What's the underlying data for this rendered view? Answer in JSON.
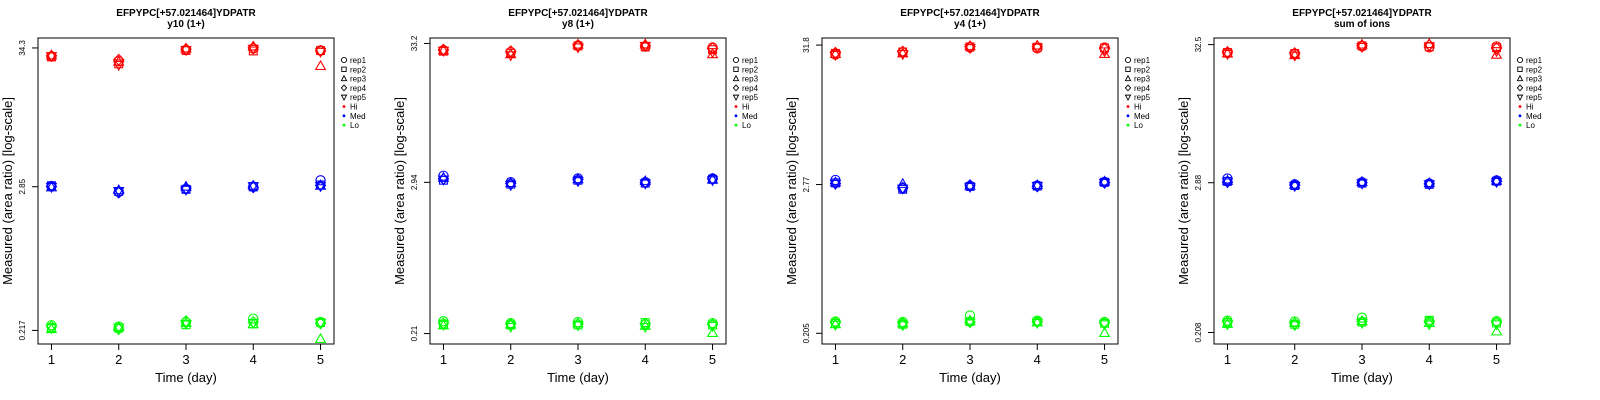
{
  "chart_data": [
    {
      "type": "scatter",
      "title": "EFPYPC[+57.021464]YDPATR",
      "subtitle": "y10 (1+)",
      "xlabel": "Time (day)",
      "ylabel": "Measured (area ratio) [log-scale]",
      "y_scale": "log",
      "x_ticks": [
        "1",
        "2",
        "3",
        "4",
        "5"
      ],
      "y_ticks": [
        {
          "value": 0.217,
          "label": "0.217"
        },
        {
          "value": 2.85,
          "label": "2.85"
        },
        {
          "value": 34.3,
          "label": "34.3"
        }
      ],
      "xlim": [
        0.8,
        5.2
      ],
      "ylim": [
        0.17,
        41
      ],
      "legend_position": "outside-right",
      "legend": [
        {
          "label": "rep1",
          "marker": "circle"
        },
        {
          "label": "rep2",
          "marker": "square"
        },
        {
          "label": "rep3",
          "marker": "triangle-up"
        },
        {
          "label": "rep4",
          "marker": "diamond"
        },
        {
          "label": "rep5",
          "marker": "triangle-down"
        },
        {
          "label": "Hi",
          "marker": "dot",
          "color": "#ff0000"
        },
        {
          "label": "Med",
          "marker": "dot",
          "color": "#0000ff"
        },
        {
          "label": "Lo",
          "marker": "dot",
          "color": "#00ff00"
        }
      ],
      "series": [
        {
          "level": "Hi",
          "color": "#ff0000",
          "marker_by_rep": true,
          "values": [
            [
              29.5,
              29.2,
              30.0,
              29.8,
              29.6
            ],
            [
              27.0,
              25.8,
              26.8,
              27.8,
              25.3
            ],
            [
              33.2,
              32.8,
              34.0,
              33.6,
              33.0
            ],
            [
              34.0,
              32.5,
              35.2,
              34.5,
              33.8
            ],
            [
              32.8,
              32.7,
              24.8,
              32.5,
              32.0
            ]
          ]
        },
        {
          "level": "Med",
          "color": "#0000ff",
          "marker_by_rep": true,
          "values": [
            [
              2.88,
              2.9,
              2.82,
              2.86,
              2.84
            ],
            [
              2.6,
              2.62,
              2.68,
              2.56,
              2.64
            ],
            [
              2.74,
              2.72,
              2.85,
              2.78,
              2.7
            ],
            [
              2.86,
              2.84,
              2.9,
              2.82,
              2.88
            ],
            [
              3.2,
              2.94,
              2.9,
              2.92,
              2.88
            ]
          ]
        },
        {
          "level": "Lo",
          "color": "#00ff00",
          "marker_by_rep": true,
          "values": [
            [
              0.238,
              0.228,
              0.222,
              0.232,
              0.226
            ],
            [
              0.232,
              0.226,
              0.23,
              0.222,
              0.228
            ],
            [
              0.252,
              0.24,
              0.248,
              0.256,
              0.244
            ],
            [
              0.268,
              0.244,
              0.242,
              0.252,
              0.248
            ],
            [
              0.252,
              0.25,
              0.186,
              0.246,
              0.248
            ]
          ]
        }
      ]
    },
    {
      "type": "scatter",
      "title": "EFPYPC[+57.021464]YDPATR",
      "subtitle": "y8 (1+)",
      "xlabel": "Time (day)",
      "ylabel": "Measured (area ratio) [log-scale]",
      "y_scale": "log",
      "x_ticks": [
        "1",
        "2",
        "3",
        "4",
        "5"
      ],
      "y_ticks": [
        {
          "value": 0.21,
          "label": "0.21"
        },
        {
          "value": 2.94,
          "label": "2.94"
        },
        {
          "value": 33.2,
          "label": "33.2"
        }
      ],
      "xlim": [
        0.8,
        5.2
      ],
      "ylim": [
        0.175,
        36.5
      ],
      "legend_position": "outside-right",
      "legend": [
        {
          "label": "rep1",
          "marker": "circle"
        },
        {
          "label": "rep2",
          "marker": "square"
        },
        {
          "label": "rep3",
          "marker": "triangle-up"
        },
        {
          "label": "rep4",
          "marker": "diamond"
        },
        {
          "label": "rep5",
          "marker": "triangle-down"
        },
        {
          "label": "Hi",
          "marker": "dot",
          "color": "#ff0000"
        },
        {
          "label": "Med",
          "marker": "dot",
          "color": "#0000ff"
        },
        {
          "label": "Lo",
          "marker": "dot",
          "color": "#00ff00"
        }
      ],
      "series": [
        {
          "level": "Hi",
          "color": "#ff0000",
          "marker_by_rep": true,
          "values": [
            [
              29.5,
              29.0,
              29.3,
              29.8,
              29.2
            ],
            [
              28.5,
              28.0,
              27.5,
              29.0,
              27.0
            ],
            [
              32.0,
              31.8,
              32.5,
              32.2,
              31.0
            ],
            [
              31.5,
              31.2,
              32.6,
              32.0,
              31.8
            ],
            [
              31.0,
              29.8,
              27.5,
              30.5,
              28.5
            ]
          ]
        },
        {
          "level": "Med",
          "color": "#0000ff",
          "marker_by_rep": true,
          "values": [
            [
              3.3,
              3.05,
              3.18,
              3.12,
              3.08
            ],
            [
              2.95,
              2.85,
              2.9,
              2.88,
              2.8
            ],
            [
              3.15,
              3.05,
              3.1,
              3.08,
              3.0
            ],
            [
              2.95,
              2.9,
              3.0,
              2.92,
              2.88
            ],
            [
              3.15,
              3.1,
              3.08,
              3.12,
              3.05
            ]
          ]
        },
        {
          "level": "Lo",
          "color": "#00ff00",
          "marker_by_rep": true,
          "values": [
            [
              0.26,
              0.248,
              0.242,
              0.25,
              0.244
            ],
            [
              0.252,
              0.244,
              0.246,
              0.248,
              0.236
            ],
            [
              0.256,
              0.244,
              0.25,
              0.248,
              0.242
            ],
            [
              0.246,
              0.254,
              0.24,
              0.25,
              0.236
            ],
            [
              0.252,
              0.244,
              0.212,
              0.246,
              0.24
            ]
          ]
        }
      ]
    },
    {
      "type": "scatter",
      "title": "EFPYPC[+57.021464]YDPATR",
      "subtitle": "y4 (1+)",
      "xlabel": "Time (day)",
      "ylabel": "Measured (area ratio) [log-scale]",
      "y_scale": "log",
      "x_ticks": [
        "1",
        "2",
        "3",
        "4",
        "5"
      ],
      "y_ticks": [
        {
          "value": 0.205,
          "label": "0.205"
        },
        {
          "value": 2.77,
          "label": "2.77"
        },
        {
          "value": 31.8,
          "label": "31.8"
        }
      ],
      "xlim": [
        0.8,
        5.2
      ],
      "ylim": [
        0.17,
        36
      ],
      "legend_position": "outside-right",
      "legend": [
        {
          "label": "rep1",
          "marker": "circle"
        },
        {
          "label": "rep2",
          "marker": "square"
        },
        {
          "label": "rep3",
          "marker": "triangle-up"
        },
        {
          "label": "rep4",
          "marker": "diamond"
        },
        {
          "label": "rep5",
          "marker": "triangle-down"
        },
        {
          "label": "Hi",
          "marker": "dot",
          "color": "#ff0000"
        },
        {
          "label": "Med",
          "marker": "dot",
          "color": "#0000ff"
        },
        {
          "label": "Lo",
          "marker": "dot",
          "color": "#00ff00"
        }
      ],
      "series": [
        {
          "level": "Hi",
          "color": "#ff0000",
          "marker_by_rep": true,
          "values": [
            [
              27.0,
              27.5,
              27.2,
              27.8,
              26.8
            ],
            [
              28.0,
              28.2,
              27.5,
              28.4,
              27.2
            ],
            [
              30.5,
              30.8,
              31.2,
              31.0,
              30.2
            ],
            [
              30.0,
              30.6,
              31.5,
              31.0,
              30.4
            ],
            [
              30.5,
              30.2,
              27.2,
              29.8,
              28.5
            ]
          ]
        },
        {
          "level": "Med",
          "color": "#0000ff",
          "marker_by_rep": true,
          "values": [
            [
              3.0,
              2.85,
              2.88,
              2.82,
              2.8
            ],
            [
              2.6,
              2.55,
              2.8,
              2.62,
              2.58
            ],
            [
              2.7,
              2.68,
              2.72,
              2.74,
              2.66
            ],
            [
              2.72,
              2.7,
              2.74,
              2.68,
              2.7
            ],
            [
              2.9,
              2.88,
              2.92,
              2.86,
              2.85
            ]
          ]
        },
        {
          "level": "Lo",
          "color": "#00ff00",
          "marker_by_rep": true,
          "values": [
            [
              0.252,
              0.244,
              0.24,
              0.248,
              0.238
            ],
            [
              0.25,
              0.24,
              0.244,
              0.246,
              0.236
            ],
            [
              0.28,
              0.252,
              0.256,
              0.25,
              0.248
            ],
            [
              0.256,
              0.252,
              0.248,
              0.25,
              0.246
            ],
            [
              0.25,
              0.244,
              0.206,
              0.246,
              0.24
            ]
          ]
        }
      ]
    },
    {
      "type": "scatter",
      "title": "EFPYPC[+57.021464]YDPATR",
      "subtitle": "sum of ions",
      "xlabel": "Time (day)",
      "ylabel": "Measured (area ratio) [log-scale]",
      "y_scale": "log",
      "x_ticks": [
        "1",
        "2",
        "3",
        "4",
        "5"
      ],
      "y_ticks": [
        {
          "value": 0.208,
          "label": "0.208"
        },
        {
          "value": 2.88,
          "label": "2.88"
        },
        {
          "value": 32.5,
          "label": "32.5"
        }
      ],
      "xlim": [
        0.8,
        5.2
      ],
      "ylim": [
        0.17,
        36.5
      ],
      "legend_position": "outside-right",
      "legend": [
        {
          "label": "rep1",
          "marker": "circle"
        },
        {
          "label": "rep2",
          "marker": "square"
        },
        {
          "label": "rep3",
          "marker": "triangle-up"
        },
        {
          "label": "rep4",
          "marker": "diamond"
        },
        {
          "label": "rep5",
          "marker": "triangle-down"
        },
        {
          "label": "Hi",
          "marker": "dot",
          "color": "#ff0000"
        },
        {
          "label": "Med",
          "marker": "dot",
          "color": "#0000ff"
        },
        {
          "label": "Lo",
          "marker": "dot",
          "color": "#00ff00"
        }
      ],
      "series": [
        {
          "level": "Hi",
          "color": "#ff0000",
          "marker_by_rep": true,
          "values": [
            [
              28.0,
              28.3,
              27.8,
              28.5,
              27.6
            ],
            [
              27.5,
              27.8,
              27.0,
              28.0,
              26.8
            ],
            [
              31.5,
              31.8,
              32.5,
              32.0,
              31.2
            ],
            [
              31.0,
              31.3,
              32.8,
              32.2,
              31.6
            ],
            [
              31.5,
              30.8,
              27.2,
              30.5,
              29.0
            ]
          ]
        },
        {
          "level": "Med",
          "color": "#0000ff",
          "marker_by_rep": true,
          "values": [
            [
              3.1,
              2.95,
              2.98,
              2.92,
              2.9
            ],
            [
              2.8,
              2.74,
              2.78,
              2.76,
              2.72
            ],
            [
              2.9,
              2.86,
              2.92,
              2.88,
              2.84
            ],
            [
              2.84,
              2.8,
              2.86,
              2.82,
              2.8
            ],
            [
              3.0,
              2.96,
              2.98,
              2.95,
              2.92
            ]
          ]
        },
        {
          "level": "Lo",
          "color": "#00ff00",
          "marker_by_rep": true,
          "values": [
            [
              0.256,
              0.248,
              0.242,
              0.25,
              0.24
            ],
            [
              0.252,
              0.24,
              0.246,
              0.244,
              0.236
            ],
            [
              0.27,
              0.25,
              0.254,
              0.252,
              0.246
            ],
            [
              0.254,
              0.258,
              0.246,
              0.25,
              0.24
            ],
            [
              0.254,
              0.246,
              0.212,
              0.248,
              0.24
            ]
          ]
        }
      ]
    }
  ]
}
